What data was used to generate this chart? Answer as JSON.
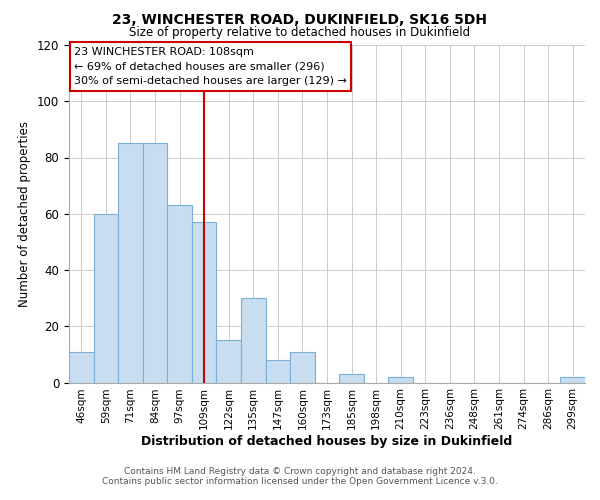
{
  "title": "23, WINCHESTER ROAD, DUKINFIELD, SK16 5DH",
  "subtitle": "Size of property relative to detached houses in Dukinfield",
  "xlabel": "Distribution of detached houses by size in Dukinfield",
  "ylabel": "Number of detached properties",
  "bar_labels": [
    "46sqm",
    "59sqm",
    "71sqm",
    "84sqm",
    "97sqm",
    "109sqm",
    "122sqm",
    "135sqm",
    "147sqm",
    "160sqm",
    "173sqm",
    "185sqm",
    "198sqm",
    "210sqm",
    "223sqm",
    "236sqm",
    "248sqm",
    "261sqm",
    "274sqm",
    "286sqm",
    "299sqm"
  ],
  "bar_values": [
    11,
    60,
    85,
    85,
    63,
    57,
    15,
    30,
    8,
    11,
    0,
    3,
    0,
    2,
    0,
    0,
    0,
    0,
    0,
    0,
    2
  ],
  "bar_color": "#c9ddf0",
  "bar_edge_color": "#7bafd4",
  "highlight_x_label": "109sqm",
  "highlight_line_color": "#cc0000",
  "ylim": [
    0,
    120
  ],
  "yticks": [
    0,
    20,
    40,
    60,
    80,
    100,
    120
  ],
  "annotation_title": "23 WINCHESTER ROAD: 108sqm",
  "annotation_line1": "← 69% of detached houses are smaller (296)",
  "annotation_line2": "30% of semi-detached houses are larger (129) →",
  "annotation_box_color": "#ffffff",
  "annotation_box_edge": "#cc0000",
  "footer_line1": "Contains HM Land Registry data © Crown copyright and database right 2024.",
  "footer_line2": "Contains public sector information licensed under the Open Government Licence v.3.0.",
  "background_color": "#ffffff",
  "grid_color": "#cccccc"
}
